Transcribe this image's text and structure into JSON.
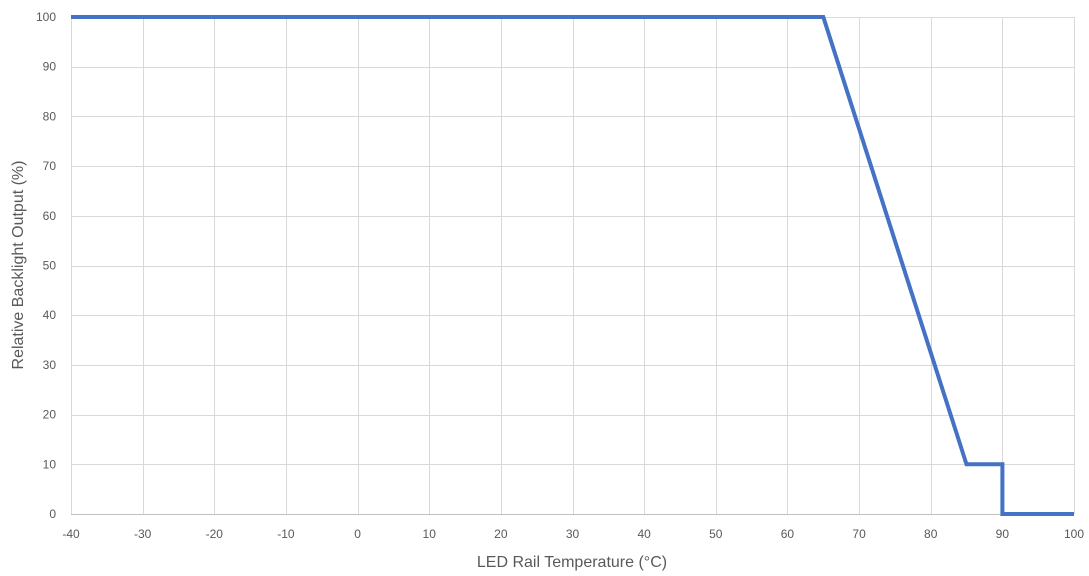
{
  "chart_data": {
    "type": "line",
    "title": "",
    "xlabel": "LED Rail Temperature (°C)",
    "ylabel": "Relative Backlight Output (%)",
    "xlim": [
      -40,
      100
    ],
    "ylim": [
      0,
      100
    ],
    "x_ticks": [
      -40,
      -30,
      -20,
      -10,
      0,
      10,
      20,
      30,
      40,
      50,
      60,
      70,
      80,
      90,
      100
    ],
    "y_ticks": [
      0,
      10,
      20,
      30,
      40,
      50,
      60,
      70,
      80,
      90,
      100
    ],
    "grid": true,
    "series": [
      {
        "color": "#4472c4",
        "points": [
          {
            "x": -40,
            "y": 100
          },
          {
            "x": 65,
            "y": 100
          },
          {
            "x": 85,
            "y": 10
          },
          {
            "x": 90,
            "y": 10
          },
          {
            "x": 90,
            "y": 0
          },
          {
            "x": 100,
            "y": 0
          }
        ]
      }
    ]
  }
}
